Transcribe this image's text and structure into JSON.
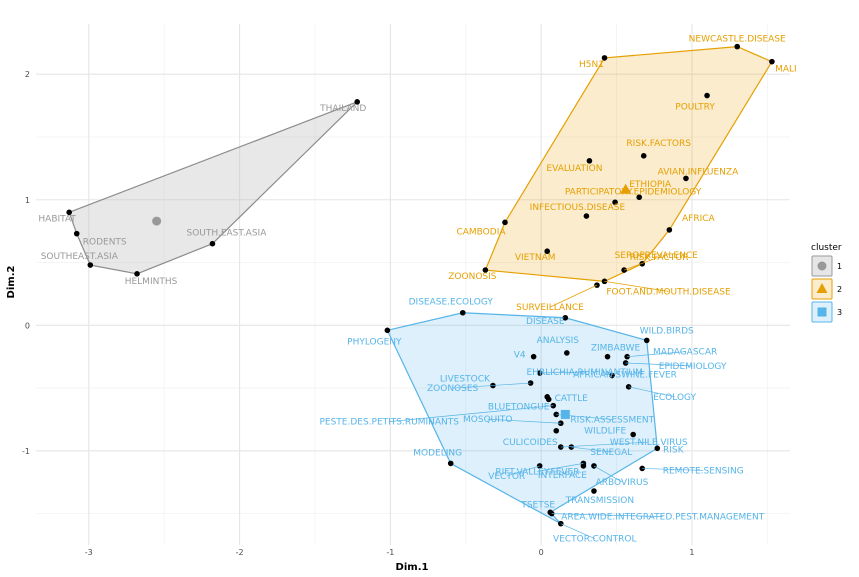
{
  "chart_data": {
    "type": "scatter",
    "xlabel": "Dim.1",
    "ylabel": "Dim.2",
    "xlim": [
      -3.35,
      1.65
    ],
    "ylim": [
      -1.75,
      2.4
    ],
    "xticks": [
      -3,
      -2,
      -1,
      0,
      1
    ],
    "yticks": [
      -1,
      0,
      1,
      2
    ],
    "grid": true,
    "legend": {
      "title": "cluster",
      "position": "right",
      "entries": [
        "1",
        "2",
        "3"
      ]
    },
    "colors": {
      "1": "#999999",
      "2": "#E69F00",
      "3": "#56B4E9"
    },
    "clusters": [
      {
        "name": "1",
        "centroid": [
          -2.55,
          0.83
        ],
        "hull": [
          "HABITAT",
          "THAILAND",
          "SOUTH.EAST.ASIA",
          "HELMINTHS",
          "SOUTHEAST.ASIA",
          "RODENTS"
        ]
      },
      {
        "name": "2",
        "centroid": [
          0.56,
          1.08
        ],
        "hull": [
          "ZOONOSIS",
          "CAMBODIA",
          "H5N1",
          "NEWCASTLE.DISEASE",
          "MALI",
          "AFRICA",
          "SEROPREVALENCE",
          "FOOT.AND.MOUTH.DISEASE"
        ]
      },
      {
        "name": "3",
        "centroid": [
          0.16,
          -0.71
        ],
        "hull": [
          "PHYLOGENY",
          "DISEASE.ECOLOGY",
          "DISEASE",
          "WILD.BIRDS",
          "RISK",
          "TSETSE",
          "VECTOR.CONTROL",
          "MODELING"
        ]
      }
    ],
    "points": [
      {
        "label": "THAILAND",
        "x": -1.22,
        "y": 1.78,
        "cluster": "1"
      },
      {
        "label": "HABITAT",
        "x": -3.13,
        "y": 0.9,
        "cluster": "1"
      },
      {
        "label": "RODENTS",
        "x": -3.08,
        "y": 0.73,
        "cluster": "1"
      },
      {
        "label": "SOUTH.EAST.ASIA",
        "x": -2.18,
        "y": 0.65,
        "cluster": "1"
      },
      {
        "label": "SOUTHEAST.ASIA",
        "x": -2.99,
        "y": 0.48,
        "cluster": "1"
      },
      {
        "label": "HELMINTHS",
        "x": -2.68,
        "y": 0.41,
        "cluster": "1"
      },
      {
        "label": "NEWCASTLE.DISEASE",
        "x": 1.3,
        "y": 2.22,
        "cluster": "2"
      },
      {
        "label": "H5N1",
        "x": 0.42,
        "y": 2.13,
        "cluster": "2"
      },
      {
        "label": "MALI",
        "x": 1.53,
        "y": 2.1,
        "cluster": "2"
      },
      {
        "label": "POULTRY",
        "x": 1.1,
        "y": 1.83,
        "cluster": "2"
      },
      {
        "label": "RISK.FACTORS",
        "x": 0.68,
        "y": 1.35,
        "cluster": "2"
      },
      {
        "label": "EVALUATION",
        "x": 0.32,
        "y": 1.31,
        "cluster": "2"
      },
      {
        "label": "AVIAN.INFLUENZA",
        "x": 0.96,
        "y": 1.17,
        "cluster": "2"
      },
      {
        "label": "ETHIOPIA",
        "x": 0.65,
        "y": 1.02,
        "cluster": "2"
      },
      {
        "label": "PARTICIPATORY.EPIDEMIOLOGY",
        "x": 0.49,
        "y": 0.98,
        "cluster": "2"
      },
      {
        "label": "INFECTIOUS.DISEASE",
        "x": 0.3,
        "y": 0.87,
        "cluster": "2"
      },
      {
        "label": "CAMBODIA",
        "x": -0.24,
        "y": 0.82,
        "cluster": "2"
      },
      {
        "label": "AFRICA",
        "x": 0.85,
        "y": 0.76,
        "cluster": "2"
      },
      {
        "label": "VIETNAM",
        "x": 0.04,
        "y": 0.59,
        "cluster": "2"
      },
      {
        "label": "SEROPREVALENCE",
        "x": 0.67,
        "y": 0.49,
        "cluster": "2"
      },
      {
        "label": "ZOONOSIS",
        "x": -0.37,
        "y": 0.44,
        "cluster": "2"
      },
      {
        "label": "RISK.FACTOR",
        "x": 0.55,
        "y": 0.44,
        "cluster": "2"
      },
      {
        "label": "FOOT.AND.MOUTH.DISEASE",
        "x": 0.42,
        "y": 0.35,
        "cluster": "2"
      },
      {
        "label": "SURVEILLANCE",
        "x": 0.37,
        "y": 0.32,
        "cluster": "2"
      },
      {
        "label": "DISEASE.ECOLOGY",
        "x": -0.52,
        "y": 0.1,
        "cluster": "3"
      },
      {
        "label": "DISEASE",
        "x": 0.16,
        "y": 0.06,
        "cluster": "3"
      },
      {
        "label": "PHYLOGENY",
        "x": -1.02,
        "y": -0.04,
        "cluster": "3"
      },
      {
        "label": "WILD.BIRDS",
        "x": 0.7,
        "y": -0.12,
        "cluster": "3"
      },
      {
        "label": "ANALYSIS",
        "x": 0.17,
        "y": -0.22,
        "cluster": "3"
      },
      {
        "label": "ZIMBABWE",
        "x": 0.44,
        "y": -0.25,
        "cluster": "3"
      },
      {
        "label": "MADAGASCAR",
        "x": 0.57,
        "y": -0.25,
        "cluster": "3"
      },
      {
        "label": "V4",
        "x": -0.05,
        "y": -0.25,
        "cluster": "3"
      },
      {
        "label": "EPIDEMIOLOGY",
        "x": 0.56,
        "y": -0.3,
        "cluster": "3"
      },
      {
        "label": "EHRLICHIA.RUMINANTIUM",
        "x": -0.01,
        "y": -0.38,
        "cluster": "3"
      },
      {
        "label": "LIVESTOCK",
        "x": -0.32,
        "y": -0.48,
        "cluster": "3"
      },
      {
        "label": "AFRICAN.SWINE.FEVER",
        "x": 0.47,
        "y": -0.4,
        "cluster": "3"
      },
      {
        "label": "ECOLOGY",
        "x": 0.58,
        "y": -0.49,
        "cluster": "3"
      },
      {
        "label": "ZOONOSES",
        "x": -0.07,
        "y": -0.46,
        "cluster": "3"
      },
      {
        "label": "CATTLE",
        "x": 0.04,
        "y": -0.57,
        "cluster": "3"
      },
      {
        "label": "BLUETONGUE",
        "x": 0.05,
        "y": -0.59,
        "cluster": "3"
      },
      {
        "label": "PESTE.DES.PETITS.RUMINANTS",
        "x": 0.08,
        "y": -0.64,
        "cluster": "3"
      },
      {
        "label": "RISK.ASSESSMENT",
        "x": 0.1,
        "y": -0.71,
        "cluster": "3"
      },
      {
        "label": "MOSQUITO",
        "x": 0.13,
        "y": -0.78,
        "cluster": "3"
      },
      {
        "label": "CULICOIDES",
        "x": 0.1,
        "y": -0.84,
        "cluster": "3"
      },
      {
        "label": "WILDLIFE",
        "x": 0.61,
        "y": -0.87,
        "cluster": "3"
      },
      {
        "label": "WEST.NILE.VIRUS",
        "x": 0.13,
        "y": -0.97,
        "cluster": "3"
      },
      {
        "label": "RISK",
        "x": 0.77,
        "y": -0.98,
        "cluster": "3"
      },
      {
        "label": "SENEGAL",
        "x": 0.2,
        "y": -0.97,
        "cluster": "3"
      },
      {
        "label": "RIFT.VALLEY.FEVER",
        "x": 0.28,
        "y": -1.1,
        "cluster": "3"
      },
      {
        "label": "MODELING",
        "x": -0.6,
        "y": -1.1,
        "cluster": "3"
      },
      {
        "label": "VECTOR",
        "x": -0.01,
        "y": -1.12,
        "cluster": "3"
      },
      {
        "label": "INTERFACE",
        "x": 0.28,
        "y": -1.12,
        "cluster": "3"
      },
      {
        "label": "ARBOVIRUS",
        "x": 0.35,
        "y": -1.12,
        "cluster": "3"
      },
      {
        "label": "REMOTE.SENSING",
        "x": 0.67,
        "y": -1.14,
        "cluster": "3"
      },
      {
        "label": "TRANSMISSION",
        "x": 0.35,
        "y": -1.32,
        "cluster": "3"
      },
      {
        "label": "TSETSE",
        "x": 0.06,
        "y": -1.49,
        "cluster": "3"
      },
      {
        "label": "AREA.WIDE.INTEGRATED.PEST.MANAGEMENT",
        "x": 0.07,
        "y": -1.5,
        "cluster": "3"
      },
      {
        "label": "VECTOR.CONTROL",
        "x": 0.13,
        "y": -1.58,
        "cluster": "3"
      }
    ]
  }
}
